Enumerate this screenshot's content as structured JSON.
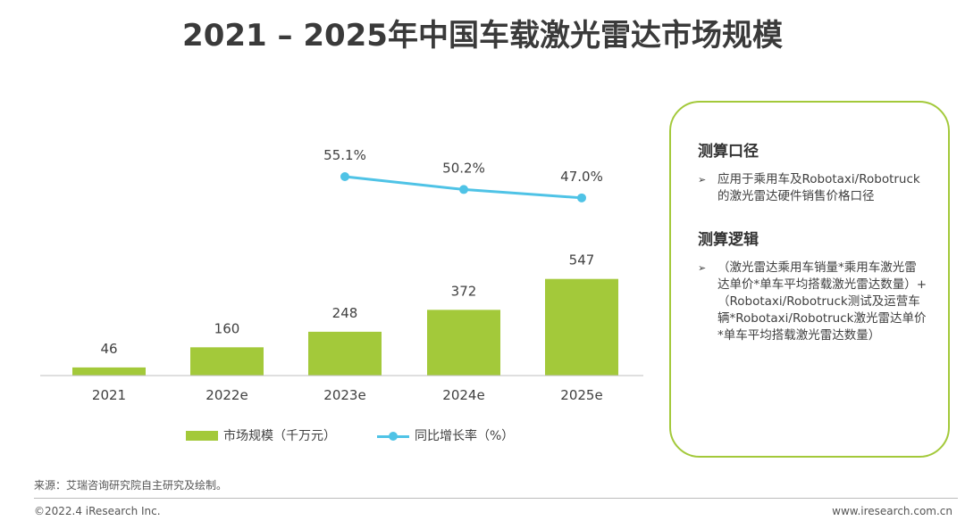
{
  "title": "2021 – 2025年中国车载激光雷达市场规模",
  "chart_data": {
    "type": "bar",
    "categories": [
      "2021",
      "2022e",
      "2023e",
      "2024e",
      "2025e"
    ],
    "series": [
      {
        "name": "市场规模（千万元）",
        "type": "bar",
        "color": "#a3c93a",
        "values": [
          46,
          160,
          248,
          372,
          547
        ],
        "labels": [
          "46",
          "160",
          "248",
          "372",
          "547"
        ]
      },
      {
        "name": "同比增长率（%）",
        "type": "line",
        "color": "#4fc3e6",
        "values": [
          null,
          null,
          55.1,
          50.2,
          47.0
        ],
        "labels": [
          "",
          "",
          "55.1%",
          "50.2%",
          "47.0%"
        ]
      }
    ]
  },
  "legend": {
    "bar": "市场规模（千万元）",
    "line": "同比增长率（%）"
  },
  "info_box": {
    "heading1": "测算口径",
    "text1": "应用于乘用车及Robotaxi/Robotruck的激光雷达硬件销售价格口径",
    "heading2": "测算逻辑",
    "text2": "（激光雷达乘用车销量*乘用车激光雷达单价*单车平均搭载激光雷达数量）+（Robotaxi/Robotruck测试及运营车辆*Robotaxi/Robotruck激光雷达单价*单车平均搭载激光雷达数量）",
    "bullet_icon": "arrow-bullet-icon"
  },
  "footer": {
    "source": "来源：艾瑞咨询研究院自主研究及绘制。",
    "copyright": "©2022.4 iResearch Inc.",
    "website": "www.iresearch.com.cn"
  }
}
